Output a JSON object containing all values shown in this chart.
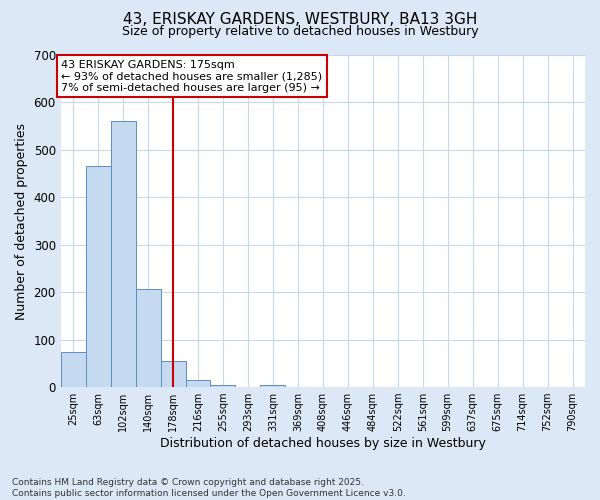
{
  "title": "43, ERISKAY GARDENS, WESTBURY, BA13 3GH",
  "subtitle": "Size of property relative to detached houses in Westbury",
  "xlabel": "Distribution of detached houses by size in Westbury",
  "ylabel": "Number of detached properties",
  "bin_labels": [
    "25sqm",
    "63sqm",
    "102sqm",
    "140sqm",
    "178sqm",
    "216sqm",
    "255sqm",
    "293sqm",
    "331sqm",
    "369sqm",
    "408sqm",
    "446sqm",
    "484sqm",
    "522sqm",
    "561sqm",
    "599sqm",
    "637sqm",
    "675sqm",
    "714sqm",
    "752sqm",
    "790sqm"
  ],
  "bar_heights": [
    75,
    465,
    560,
    207,
    55,
    15,
    5,
    0,
    5,
    0,
    0,
    0,
    0,
    0,
    0,
    0,
    0,
    0,
    0,
    0,
    0
  ],
  "bar_color": "#c5d9f0",
  "bar_edge_color": "#5a8fc0",
  "highlight_color": "#cc0000",
  "vline_bin_index": 4,
  "annotation_line1": "43 ERISKAY GARDENS: 175sqm",
  "annotation_line2": "← 93% of detached houses are smaller (1,285)",
  "annotation_line3": "7% of semi-detached houses are larger (95) →",
  "ylim": [
    0,
    700
  ],
  "yticks": [
    0,
    100,
    200,
    300,
    400,
    500,
    600,
    700
  ],
  "fig_bg_color": "#dce8f5",
  "plot_bg_color": "#ffffff",
  "grid_color": "#c8d8ec",
  "title_fontsize": 11,
  "subtitle_fontsize": 9,
  "footnote": "Contains HM Land Registry data © Crown copyright and database right 2025.\nContains public sector information licensed under the Open Government Licence v3.0."
}
